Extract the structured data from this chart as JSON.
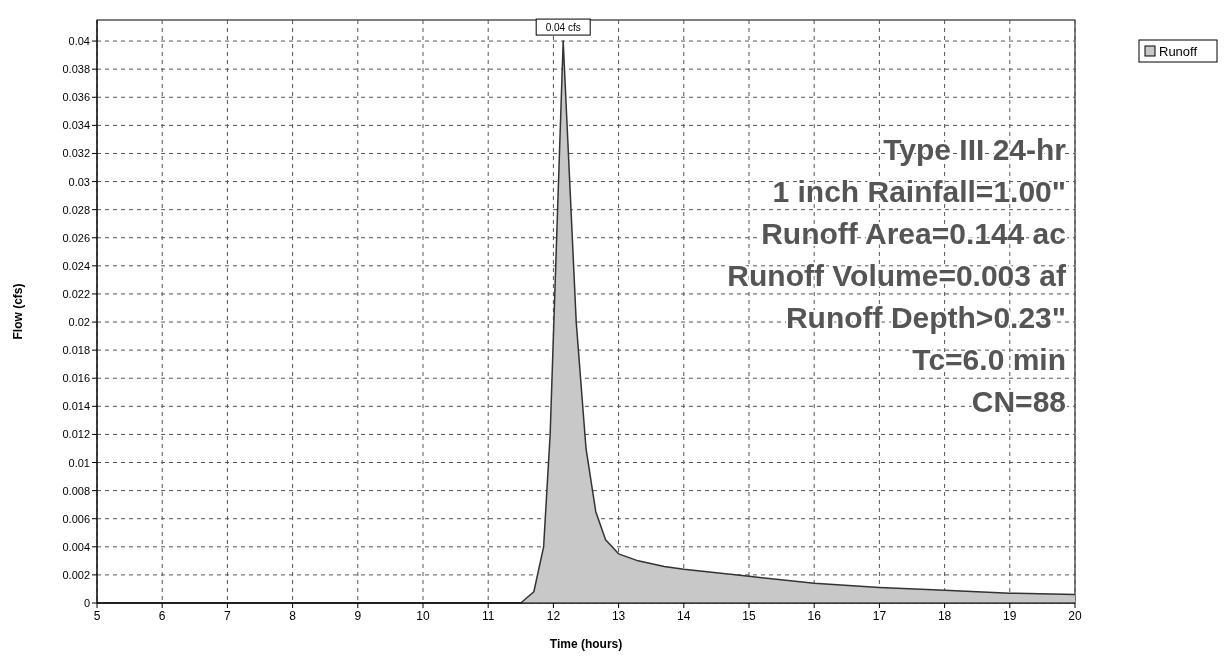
{
  "chart_data": {
    "type": "area",
    "xlabel": "Time (hours)",
    "ylabel": "Flow (cfs)",
    "x": [
      5,
      11.5,
      11.7,
      11.85,
      11.95,
      12.05,
      12.15,
      12.25,
      12.35,
      12.5,
      12.65,
      12.8,
      13,
      13.3,
      13.7,
      14,
      15,
      16,
      17,
      18,
      19,
      20
    ],
    "series": [
      {
        "name": "Runoff",
        "color": "#c8c8c8",
        "values": [
          0,
          0,
          0.0008,
          0.004,
          0.012,
          0.026,
          0.04,
          0.03,
          0.02,
          0.011,
          0.0065,
          0.0045,
          0.0035,
          0.003,
          0.0026,
          0.0024,
          0.0019,
          0.0014,
          0.0011,
          0.0009,
          0.0007,
          0.0006
        ]
      }
    ],
    "xlim": [
      5,
      20
    ],
    "xticks": [
      5,
      6,
      7,
      8,
      9,
      10,
      11,
      12,
      13,
      14,
      15,
      16,
      17,
      18,
      19,
      20
    ],
    "ylim": [
      0,
      0.0415
    ],
    "yticks": [
      0,
      0.002,
      0.004,
      0.006,
      0.008,
      0.01,
      0.012,
      0.014,
      0.016,
      0.018,
      0.02,
      0.022,
      0.024,
      0.026,
      0.028,
      0.03,
      0.032,
      0.034,
      0.036,
      0.038,
      0.04
    ],
    "grid": true,
    "legend": "top right",
    "annotations": [
      {
        "text": "0.04 cfs",
        "x": 12.15,
        "y": 0.04
      },
      "Type III 24-hr",
      "1 inch Rainfall=1.00\"",
      "Runoff Area=0.144 ac",
      "Runoff Volume=0.003 af",
      "Runoff Depth>0.23\"",
      "Tc=6.0 min",
      "CN=88"
    ]
  }
}
